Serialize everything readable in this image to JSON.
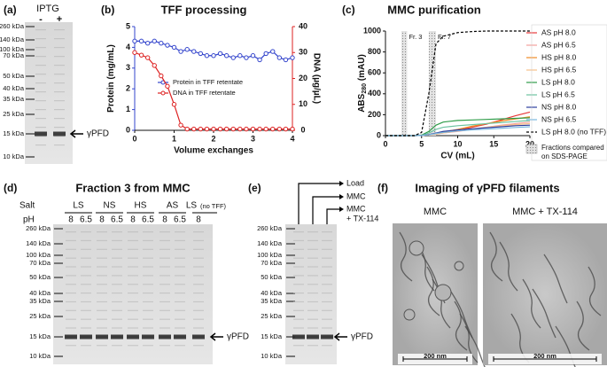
{
  "chart_data": [
    {
      "type": "line",
      "panel_label": "(b)",
      "title": "TFF processing",
      "x_label": "Volume exchanges",
      "y_label": "Protein (mg/mL)",
      "y2_label": "DNA (µg/µL)",
      "x": [
        0,
        0.17,
        0.33,
        0.5,
        0.67,
        0.83,
        1,
        1.17,
        1.33,
        1.5,
        1.67,
        1.83,
        2,
        2.17,
        2.33,
        2.5,
        2.67,
        2.83,
        3,
        3.17,
        3.33,
        3.5,
        3.67,
        3.83,
        4
      ],
      "xlim": [
        0,
        4
      ],
      "xticks": [
        0,
        1,
        2,
        3,
        4
      ],
      "ylim": [
        0,
        5
      ],
      "yticks": [
        0,
        1,
        2,
        3,
        4,
        5
      ],
      "y2lim": [
        0,
        40
      ],
      "y2ticks": [
        0,
        10,
        20,
        30,
        40
      ],
      "marker": "circle-open",
      "series": [
        {
          "name": "Protein in TFF retentate",
          "color": "#3344cc",
          "values": [
            4.3,
            4.3,
            4.2,
            4.3,
            4.2,
            4.1,
            4.0,
            3.8,
            3.9,
            3.8,
            3.7,
            3.6,
            3.6,
            3.7,
            3.6,
            3.5,
            3.6,
            3.5,
            3.6,
            3.4,
            3.7,
            3.8,
            3.5,
            3.4,
            3.5
          ]
        },
        {
          "name": "DNA in TFF retentate",
          "color": "#dd2222",
          "axis": "y2",
          "values": [
            30,
            29,
            28,
            25,
            21,
            17,
            10,
            2,
            0.5,
            0.5,
            0.5,
            0.5,
            0.5,
            0.5,
            0.5,
            0.5,
            0.5,
            0.5,
            0.5,
            0.5,
            0.5,
            0.5,
            0.5,
            0.5,
            0.5
          ]
        }
      ]
    },
    {
      "type": "line",
      "panel_label": "(c)",
      "title": "MMC purification",
      "x_label": "CV (mL)",
      "y_label": "ABS",
      "y_label_sub": "280",
      "y_label_unit": " (mAU)",
      "x": [
        0,
        2,
        4,
        5,
        6,
        7,
        8,
        10,
        12,
        14,
        16,
        18,
        20
      ],
      "xlim": [
        0,
        20
      ],
      "xticks": [
        0,
        5,
        10,
        15,
        20
      ],
      "ylim": [
        0,
        1000
      ],
      "yticks": [
        0,
        200,
        400,
        600,
        800,
        1000
      ],
      "marker": "none",
      "shaded_regions": [
        {
          "label": "Fr. 3",
          "x": [
            2.2,
            3
          ]
        },
        {
          "label": "Fr. 7",
          "x": [
            6,
            7
          ]
        }
      ],
      "shade_legend": [
        "Fractions compared",
        "on SDS-PAGE"
      ],
      "series": [
        {
          "name": "AS pH 8.0",
          "color": "#e8393a",
          "values": [
            0,
            0,
            0,
            2,
            10,
            20,
            30,
            50,
            80,
            110,
            150,
            190,
            225
          ]
        },
        {
          "name": "AS pH 6.5",
          "color": "#f4a09c",
          "values": [
            0,
            0,
            0,
            2,
            8,
            15,
            25,
            40,
            60,
            80,
            100,
            115,
            130
          ]
        },
        {
          "name": "HS pH 8.0",
          "color": "#f08a24",
          "values": [
            0,
            0,
            0,
            2,
            10,
            20,
            35,
            60,
            90,
            115,
            140,
            160,
            180
          ]
        },
        {
          "name": "HS pH 6.5",
          "color": "#f7c08a",
          "values": [
            0,
            0,
            0,
            2,
            8,
            15,
            25,
            45,
            65,
            80,
            95,
            105,
            115
          ]
        },
        {
          "name": "LS pH 8.0",
          "color": "#2e9c48",
          "values": [
            0,
            0,
            0,
            5,
            40,
            100,
            130,
            145,
            150,
            155,
            160,
            165,
            170
          ]
        },
        {
          "name": "LS pH 6.5",
          "color": "#6cc3a0",
          "values": [
            0,
            0,
            0,
            3,
            25,
            60,
            80,
            95,
            105,
            115,
            125,
            135,
            145
          ]
        },
        {
          "name": "NS pH 8.0",
          "color": "#2b3d9e",
          "values": [
            0,
            0,
            0,
            2,
            10,
            25,
            40,
            55,
            65,
            75,
            85,
            95,
            100
          ]
        },
        {
          "name": "NS pH 6.5",
          "color": "#7ab8e0",
          "values": [
            0,
            0,
            0,
            2,
            8,
            20,
            30,
            45,
            55,
            62,
            70,
            78,
            85
          ]
        },
        {
          "name": "LS pH 8.0 (no TFF)",
          "color": "#000000",
          "dashed": true,
          "values": [
            0,
            0,
            0,
            30,
            400,
            880,
            950,
            985,
            995,
            1000,
            1000,
            1000,
            1000
          ]
        }
      ]
    }
  ],
  "panels": {
    "a": {
      "label": "(a)",
      "header": "IPTG",
      "lanes": [
        "-",
        "+"
      ],
      "ladder": [
        "260 kDa",
        "140 kDa",
        "100 kDa",
        "70 kDa",
        "50 kDa",
        "40 kDa",
        "35 kDa",
        "25 kDa",
        "15 kDa",
        "10 kDa"
      ],
      "band_label": "γPFD"
    },
    "d": {
      "label": "(d)",
      "title": "Fraction 3 from MMC",
      "salt_header": "Salt",
      "ph_header": "pH",
      "groups": [
        {
          "salt": "LS",
          "ph": [
            "8",
            "6.5"
          ]
        },
        {
          "salt": "NS",
          "ph": [
            "8",
            "6.5"
          ]
        },
        {
          "salt": "HS",
          "ph": [
            "8",
            "6.5"
          ]
        },
        {
          "salt": "AS",
          "ph": [
            "8",
            "6.5"
          ]
        },
        {
          "salt": "LS",
          "note": "(no TFF)",
          "ph": [
            "8"
          ]
        }
      ],
      "ladder": [
        "260 kDa",
        "140 kDa",
        "100 kDa",
        "70 kDa",
        "50 kDa",
        "40 kDa",
        "35 kDa",
        "25 kDa",
        "15 kDa",
        "10 kDa"
      ],
      "band_label": "γPFD"
    },
    "e": {
      "label": "(e)",
      "lane_labels": [
        [
          "Load"
        ],
        [
          "MMC"
        ],
        [
          "MMC",
          "+ TX-114"
        ]
      ],
      "ladder": [
        "260 kDa",
        "140 kDa",
        "100 kDa",
        "70 kDa",
        "50 kDa",
        "40 kDa",
        "35 kDa",
        "25 kDa",
        "15 kDa",
        "10 kDa"
      ],
      "band_label": "γPFD"
    },
    "f": {
      "label": "(f)",
      "title": "Imaging of γPFD  filaments",
      "images": [
        {
          "caption": "MMC",
          "scale": "200 nm"
        },
        {
          "caption": "MMC + TX-114",
          "scale": "200 nm"
        }
      ]
    }
  }
}
